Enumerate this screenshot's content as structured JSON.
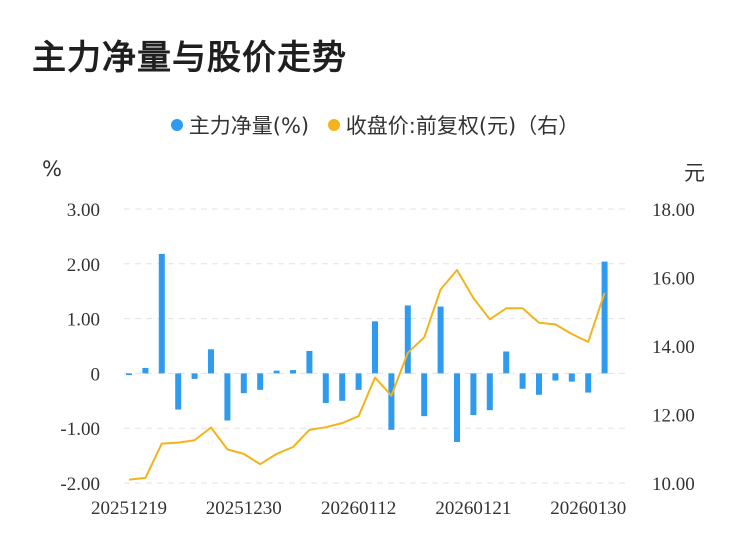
{
  "title": "主力净量与股价走势",
  "colors": {
    "bar": "#2e9bef",
    "line": "#f5b31b",
    "grid": "#e3e3e3"
  },
  "chart_data": {
    "type": "bar+line",
    "legend": [
      {
        "label": "主力净量(%)",
        "color": "#2e9bef"
      },
      {
        "label": "收盘价:前复权(元)（右）",
        "color": "#f5b31b"
      }
    ],
    "left_unit": "%",
    "right_unit": "元",
    "left_axis": {
      "min": -2,
      "max": 3,
      "ticks": [
        "3.00",
        "2.00",
        "1.00",
        "0",
        "-1.00",
        "-2.00"
      ]
    },
    "right_axis": {
      "min": 10,
      "max": 18,
      "ticks": [
        "18.00",
        "16.00",
        "14.00",
        "12.00",
        "10.00"
      ]
    },
    "x_labels": [
      {
        "label": "20251219",
        "index": 0
      },
      {
        "label": "20251230",
        "index": 7
      },
      {
        "label": "20260112",
        "index": 14
      },
      {
        "label": "20260121",
        "index": 21
      },
      {
        "label": "20260130",
        "index": 28
      }
    ],
    "bars": [
      -0.03,
      0.1,
      2.18,
      -0.66,
      -0.1,
      0.44,
      -0.86,
      -0.36,
      -0.3,
      0.05,
      0.06,
      0.41,
      -0.54,
      -0.5,
      -0.3,
      0.95,
      -1.03,
      1.24,
      -0.78,
      1.22,
      -1.25,
      -0.76,
      -0.67,
      0.4,
      -0.28,
      -0.39,
      -0.13,
      -0.15,
      -0.35,
      2.04
    ],
    "close": [
      10.1,
      10.15,
      11.15,
      11.18,
      11.25,
      11.62,
      10.98,
      10.85,
      10.55,
      10.85,
      11.05,
      11.55,
      11.63,
      11.75,
      11.95,
      13.08,
      12.55,
      13.8,
      14.25,
      15.65,
      16.22,
      15.4,
      14.78,
      15.1,
      15.1,
      14.68,
      14.63,
      14.35,
      14.12,
      15.55
    ]
  }
}
